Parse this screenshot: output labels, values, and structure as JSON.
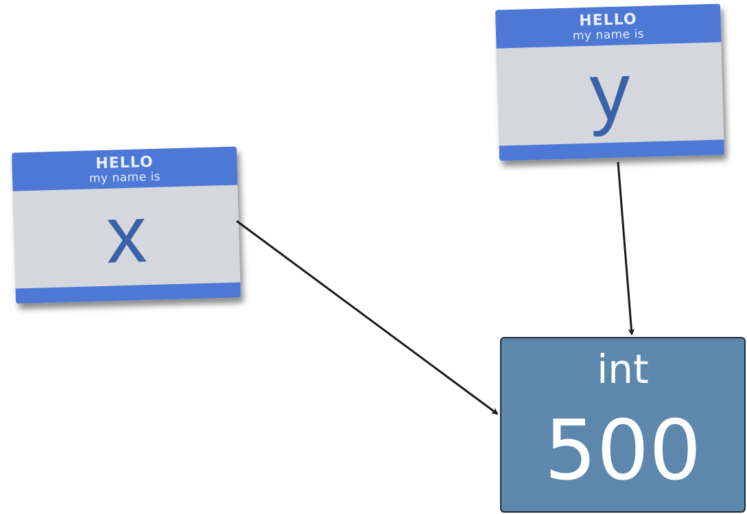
{
  "tags": [
    {
      "id": "x",
      "header": "HELLO",
      "subheader": "my name is",
      "name": "x"
    },
    {
      "id": "y",
      "header": "HELLO",
      "subheader": "my name is",
      "name": "y"
    }
  ],
  "value_box": {
    "type": "int",
    "value": "500"
  },
  "colors": {
    "tag_blue": "#4d78d6",
    "tag_body": "#d5d7dc",
    "tag_name_text": "#3a62ab",
    "box_fill": "#5d87ad",
    "arrow": "#1a1a1a"
  }
}
